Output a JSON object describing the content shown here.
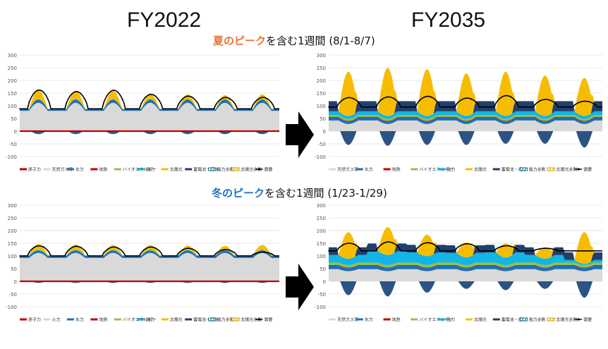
{
  "headers": {
    "left": "FY2022",
    "right": "FY2035"
  },
  "sections": {
    "summer": {
      "highlight": "夏のピーク",
      "rest": "を含む1週間 (8/1-8/7)"
    },
    "winter": {
      "highlight": "冬のピーク",
      "rest": "を含む1週間 (1/23-1/29)"
    }
  },
  "colors": {
    "原子力": "#c00000",
    "天然ガス等": "#d9d9d9",
    "火力": "#d9d9d9",
    "水力": "#1f6fb5",
    "地熱": "#c00000",
    "バイオエネルギー": "#8fc24f",
    "風力": "#12b5e6",
    "太陽光": "#f6bd00",
    "蓄電池・揚水": "#1f3f6e",
    "風力余剰": "#1b6e8c",
    "太陽光余剰": "#c9a100",
    "需要": "#000000"
  },
  "chart_data": [
    {
      "id": "summer-2022",
      "type": "area",
      "stacked": true,
      "ylim": [
        -100,
        300
      ],
      "yticks": [
        300,
        250,
        200,
        150,
        100,
        50,
        0,
        -50,
        -100
      ],
      "grid": true,
      "days": 7,
      "period": "8/1-8/7",
      "legend": [
        "原子力",
        "天然ガス等",
        "水力",
        "地熱",
        "バイオエネルギー",
        "風力",
        "太陽光",
        "蓄電池・揚水",
        "風力余剰",
        "太陽光余剰",
        "需要"
      ],
      "legend_position": "bottom",
      "series_daily": {
        "天然ガス等": {
          "night": 80,
          "day": 112
        },
        "水力": {
          "night": 6,
          "day": 13
        },
        "原子力": {
          "night": 0,
          "day": 0
        },
        "地熱": {
          "night": 0,
          "day": 0
        },
        "バイオエネルギー": {
          "night": 2,
          "day": 2
        },
        "風力": {
          "night": 0,
          "day": 0
        },
        "太陽光": {
          "night": 0,
          "day": [
            35,
            32,
            32,
            20,
            18,
            15,
            18
          ]
        },
        "蓄電池・揚水": {
          "night": 0,
          "day": 0,
          "charge": -12
        },
        "需要": {
          "night": 88,
          "day": [
            162,
            156,
            161,
            145,
            138,
            133,
            133
          ]
        }
      }
    },
    {
      "id": "summer-2035",
      "type": "area",
      "stacked": true,
      "ylim": [
        -100,
        300
      ],
      "yticks": [
        300,
        250,
        200,
        150,
        100,
        50,
        0,
        -50,
        -100
      ],
      "grid": true,
      "days": 7,
      "period": "8/1-8/7",
      "legend": [
        "天然ガス等",
        "水力",
        "地熱",
        "バイオエネルギー",
        "風力",
        "太陽光",
        "蓄電池・揚水",
        "風力余剰",
        "太陽光余剰",
        "需要"
      ],
      "legend_position": "bottom",
      "series_daily": {
        "天然ガス等": {
          "night": 42,
          "day": 28
        },
        "水力": {
          "night": 12,
          "day": 10
        },
        "地熱": {
          "night": 2,
          "day": 2
        },
        "バイオエネルギー": {
          "night": 8,
          "day": 8
        },
        "風力": {
          "night": 14,
          "day": 12
        },
        "太陽光": {
          "night": 0,
          "day": [
            175,
            190,
            185,
            168,
            175,
            160,
            150
          ]
        },
        "蓄電池・揚水": {
          "night": 40,
          "day": 0,
          "charge": [
            -55,
            -58,
            -55,
            -55,
            -50,
            -50,
            -65
          ]
        },
        "需要": {
          "night": 95,
          "day": [
            132,
            135,
            137,
            130,
            140,
            125,
            118
          ]
        }
      }
    },
    {
      "id": "winter-2022",
      "type": "area",
      "stacked": true,
      "ylim": [
        -100,
        300
      ],
      "yticks": [
        300,
        250,
        200,
        150,
        100,
        50,
        0,
        -50,
        -100
      ],
      "grid": true,
      "days": 7,
      "period": "1/23-1/29",
      "legend": [
        "原子力",
        "火力",
        "水力",
        "地熱",
        "バイオエネルギー",
        "風力",
        "太陽光",
        "蓄電池・揚水",
        "風力余剰",
        "太陽光余剰",
        "需要"
      ],
      "legend_position": "bottom",
      "series_daily": {
        "火力": {
          "night": 92,
          "day": 112
        },
        "水力": {
          "night": 8,
          "day": 10
        },
        "原子力": {
          "night": 0,
          "day": 0
        },
        "地熱": {
          "night": 0,
          "day": 0
        },
        "バイオエネルギー": {
          "night": 2,
          "day": 2
        },
        "風力": {
          "night": 1,
          "day": 1
        },
        "太陽光": {
          "night": 0,
          "day": [
            22,
            20,
            18,
            18,
            16,
            15,
            18
          ]
        },
        "蓄電池・揚水": {
          "night": 0,
          "day": 0,
          "charge": -6
        },
        "需要": {
          "night": 100,
          "day": [
            140,
            138,
            135,
            135,
            130,
            125,
            115
          ]
        }
      }
    },
    {
      "id": "winter-2035",
      "type": "area",
      "stacked": true,
      "ylim": [
        -100,
        300
      ],
      "yticks": [
        300,
        250,
        200,
        150,
        100,
        50,
        0,
        -50,
        -100
      ],
      "grid": true,
      "days": 7,
      "period": "1/23-1/29",
      "legend": [
        "天然ガス等",
        "水力",
        "地熱",
        "バイオエネルギー",
        "風力",
        "太陽光",
        "蓄電池・揚水",
        "風力余剰",
        "太陽光余剰",
        "需要"
      ],
      "legend_position": "bottom",
      "series_daily": {
        "天然ガス等": {
          "night": 48,
          "day": 40
        },
        "水力": {
          "night": 14,
          "day": 12
        },
        "地熱": {
          "night": 2,
          "day": 2
        },
        "バイオエネルギー": {
          "night": 10,
          "day": 10
        },
        "風力": {
          "night": [
            30,
            45,
            40,
            38,
            40,
            30,
            10
          ],
          "day": [
            25,
            40,
            35,
            30,
            30,
            25,
            5
          ]
        },
        "太陽光": {
          "night": 0,
          "day": [
            105,
            110,
            85,
            60,
            55,
            45,
            125
          ]
        },
        "蓄電池・揚水": {
          "night": 30,
          "day": 0,
          "charge": [
            -55,
            -60,
            -45,
            -30,
            -35,
            -30,
            -65
          ]
        },
        "需要": {
          "night": 120,
          "day": [
            150,
            155,
            152,
            148,
            140,
            130,
            120
          ]
        }
      }
    }
  ]
}
